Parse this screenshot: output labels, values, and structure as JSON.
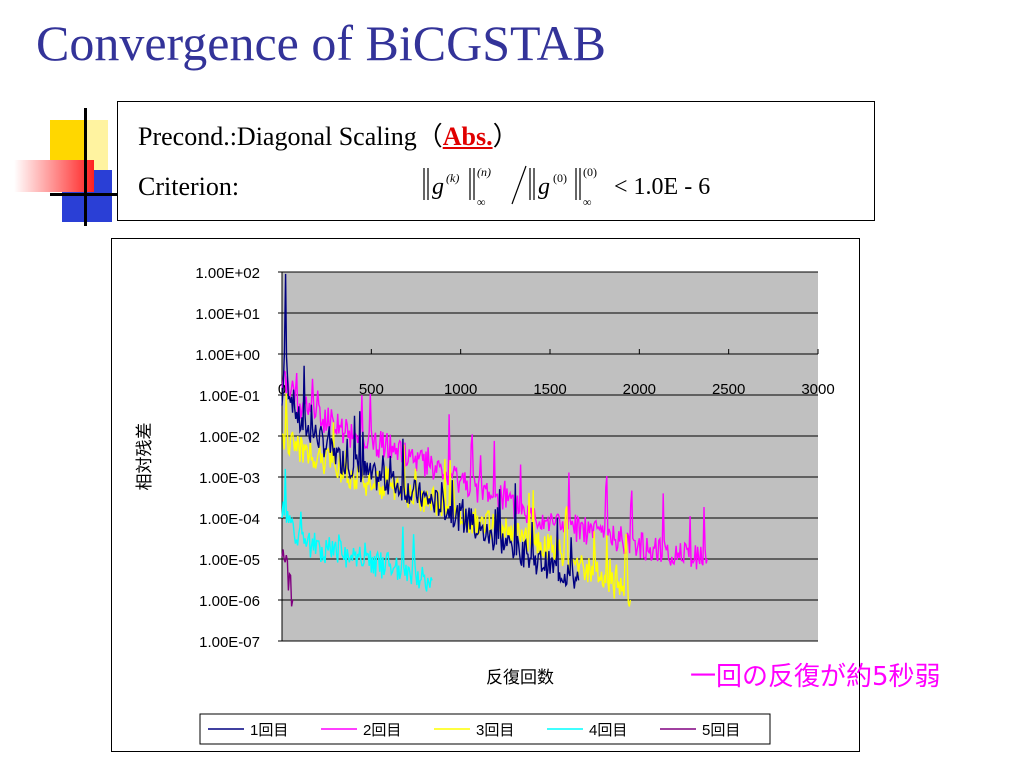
{
  "slide": {
    "title": "Convergence of BiCGSTAB",
    "note": "一回の反復が約5秒弱"
  },
  "criteria": {
    "precond_label": "Precond.:Diagonal Scaling（",
    "precond_abs": "Abs.",
    "precond_close": "）",
    "criterion_label": "Criterion:",
    "formula": {
      "g1": "g",
      "sup_k": "(k)",
      "sup_n": "(n)",
      "g2": "g",
      "sup_0": "(0)",
      "sup_0b": "(0)",
      "inf": "∞",
      "inf2": "∞",
      "tail": "< 1.0E - 6"
    }
  },
  "chart_data": {
    "type": "line",
    "ylabel": "相対残差",
    "xlabel": "反復回数",
    "y_scale": "log",
    "ylim": [
      1e-07,
      100
    ],
    "xlim": [
      0,
      3000
    ],
    "y_tick_labels": [
      "1.00E+02",
      "1.00E+01",
      "1.00E+00",
      "1.00E-01",
      "1.00E-02",
      "1.00E-03",
      "1.00E-04",
      "1.00E-05",
      "1.00E-06",
      "1.00E-07"
    ],
    "x_ticks": [
      0,
      500,
      1000,
      1500,
      2000,
      2500,
      3000
    ],
    "x_axis_crosses_at": 1,
    "grid": true,
    "plot_background": "#c0c0c0",
    "legend_position": "bottom",
    "series": [
      {
        "name": "1回目",
        "color": "#000080",
        "end_iter": 1660,
        "points": [
          [
            0,
            0.05
          ],
          [
            20,
            5
          ],
          [
            30,
            0.2
          ],
          [
            100,
            0.02
          ],
          [
            200,
            0.01
          ],
          [
            300,
            0.003
          ],
          [
            400,
            0.002
          ],
          [
            500,
            0.001
          ],
          [
            600,
            0.0008
          ],
          [
            700,
            0.0005
          ],
          [
            800,
            0.0003
          ],
          [
            900,
            0.0002
          ],
          [
            1000,
            0.0001
          ],
          [
            1100,
            5e-05
          ],
          [
            1200,
            3e-05
          ],
          [
            1300,
            2e-05
          ],
          [
            1400,
            1e-05
          ],
          [
            1500,
            7e-06
          ],
          [
            1600,
            4e-06
          ],
          [
            1660,
            3e-06
          ]
        ]
      },
      {
        "name": "2回目",
        "color": "#ff00ff",
        "end_iter": 2380,
        "points": [
          [
            0,
            0.3
          ],
          [
            100,
            0.05
          ],
          [
            200,
            0.03
          ],
          [
            300,
            0.02
          ],
          [
            400,
            0.01
          ],
          [
            500,
            0.008
          ],
          [
            600,
            0.005
          ],
          [
            700,
            0.003
          ],
          [
            800,
            0.002
          ],
          [
            900,
            0.001
          ],
          [
            1000,
            0.0008
          ],
          [
            1100,
            0.0005
          ],
          [
            1200,
            0.0003
          ],
          [
            1300,
            0.0002
          ],
          [
            1400,
            0.0001
          ],
          [
            1500,
            8e-05
          ],
          [
            1600,
            6e-05
          ],
          [
            1800,
            4e-05
          ],
          [
            2000,
            2e-05
          ],
          [
            2200,
            1.5e-05
          ],
          [
            2380,
            1e-05
          ]
        ]
      },
      {
        "name": "3回目",
        "color": "#ffff00",
        "end_iter": 1950,
        "points": [
          [
            0,
            0.01
          ],
          [
            100,
            0.005
          ],
          [
            200,
            0.003
          ],
          [
            300,
            0.002
          ],
          [
            400,
            0.001
          ],
          [
            500,
            0.0007
          ],
          [
            600,
            0.0005
          ],
          [
            700,
            0.0004
          ],
          [
            800,
            0.0003
          ],
          [
            900,
            0.0002
          ],
          [
            1000,
            0.0001
          ],
          [
            1100,
            8e-05
          ],
          [
            1200,
            6e-05
          ],
          [
            1300,
            4e-05
          ],
          [
            1400,
            3e-05
          ],
          [
            1500,
            2e-05
          ],
          [
            1600,
            1e-05
          ],
          [
            1700,
            6e-06
          ],
          [
            1800,
            4e-06
          ],
          [
            1950,
            1e-06
          ]
        ]
      },
      {
        "name": "4回目",
        "color": "#00ffff",
        "end_iter": 840,
        "points": [
          [
            0,
            0.0002
          ],
          [
            50,
            5e-05
          ],
          [
            100,
            3e-05
          ],
          [
            200,
            2e-05
          ],
          [
            300,
            1.5e-05
          ],
          [
            400,
            1e-05
          ],
          [
            500,
            8e-06
          ],
          [
            600,
            7e-06
          ],
          [
            700,
            5e-06
          ],
          [
            840,
            3e-06
          ]
        ]
      },
      {
        "name": "5回目",
        "color": "#800080",
        "end_iter": 60,
        "points": [
          [
            0,
            1e-05
          ],
          [
            30,
            5e-06
          ],
          [
            60,
            1e-06
          ]
        ]
      }
    ]
  }
}
